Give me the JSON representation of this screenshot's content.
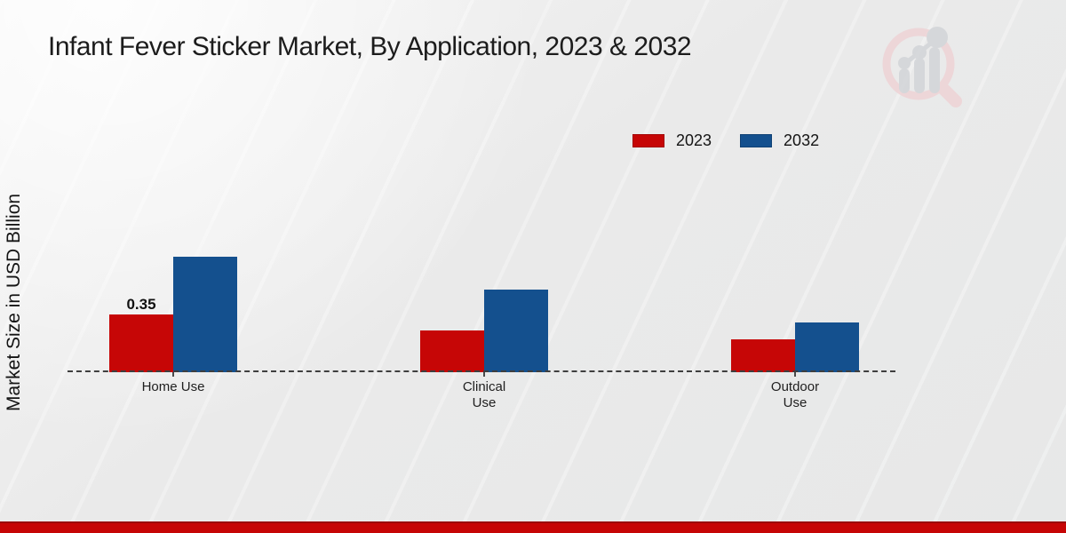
{
  "header": {
    "title": "Infant Fever Sticker Market, By Application, 2023 & 2032"
  },
  "axes": {
    "ylabel": "Market Size in USD Billion"
  },
  "legend": {
    "items": [
      {
        "label": "2023",
        "color": "#c60606"
      },
      {
        "label": "2032",
        "color": "#14508e"
      }
    ]
  },
  "chart_data": {
    "type": "bar",
    "title": "Infant Fever Sticker Market, By Application, 2023 & 2032",
    "xlabel": "",
    "ylabel": "Market Size in USD Billion",
    "categories": [
      "Home Use",
      "Clinical\nUse",
      "Outdoor\nUse"
    ],
    "series": [
      {
        "name": "2023",
        "color": "#c60606",
        "values": [
          0.35,
          0.25,
          0.2
        ]
      },
      {
        "name": "2032",
        "color": "#14508e",
        "values": [
          0.7,
          0.5,
          0.3
        ]
      }
    ],
    "value_labels": [
      {
        "series_index": 0,
        "category_index": 0,
        "text": "0.35"
      }
    ],
    "ylim": [
      0,
      0.8
    ],
    "gridlines": false,
    "axis_line_style": "dashed",
    "legend_position": "top-right",
    "unit": "USD Billion"
  },
  "footer": {
    "accent_color": "#c60505"
  },
  "watermark": {
    "icon": "magnifier-bar-chart-logo-icon"
  }
}
